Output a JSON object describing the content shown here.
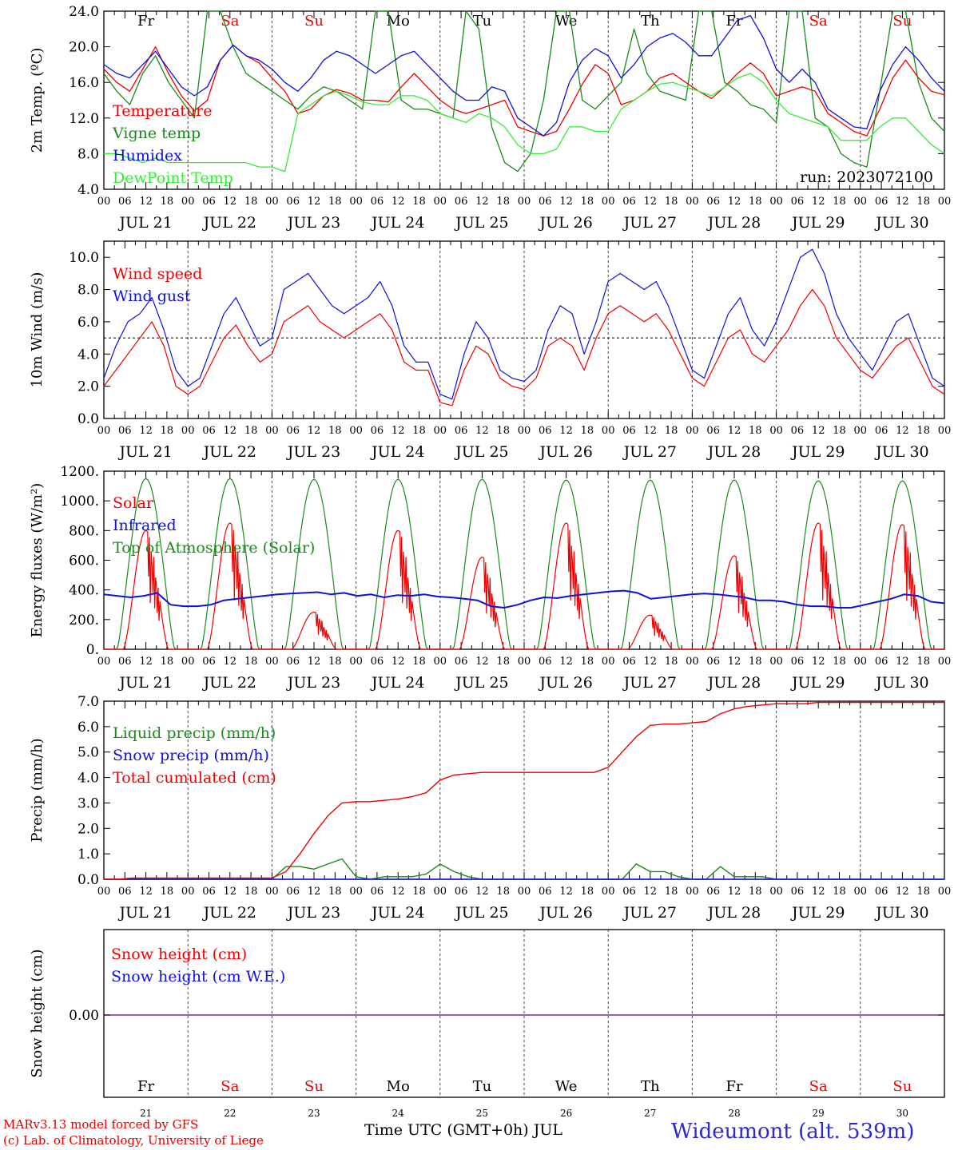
{
  "chart_data": [
    {
      "type": "line",
      "ylabel": "2m Temp. (ºC)",
      "ylim": [
        4,
        24
      ],
      "yticks": [
        "4.0",
        "8.0",
        "12.0",
        "16.0",
        "20.0",
        "24.0"
      ],
      "annotation": "run: 2023072100",
      "legend_placement": "bottom-left",
      "series": [
        {
          "name": "Temperature",
          "color": "#ee0000",
          "values": [
            17.5,
            16.0,
            15.0,
            17.5,
            20.0,
            17.0,
            14.5,
            12.8,
            14.0,
            18.5,
            20.2,
            19.0,
            18.2,
            16.5,
            15.0,
            12.5,
            13.0,
            14.5,
            15.2,
            14.8,
            14.0,
            14.0,
            13.8,
            15.5,
            17.0,
            15.5,
            14.0,
            13.0,
            12.5,
            13.0,
            13.5,
            14.0,
            11.0,
            10.5,
            10.0,
            10.5,
            13.0,
            15.8,
            18.0,
            17.0,
            13.5,
            14.0,
            15.0,
            16.5,
            17.0,
            16.0,
            15.0,
            14.2,
            15.5,
            17.0,
            18.2,
            17.0,
            14.5,
            15.0,
            15.5,
            15.0,
            12.5,
            11.5,
            10.5,
            10.0,
            13.0,
            16.5,
            18.5,
            16.5,
            15.0,
            14.6
          ]
        },
        {
          "name": "Vigne temp",
          "color": "#1a8a1a",
          "values": [
            17.0,
            15.0,
            13.5,
            17.0,
            19.0,
            16.0,
            14.0,
            12.0,
            24.0,
            24.0,
            20.0,
            17.0,
            16.0,
            15.0,
            14.0,
            13.0,
            14.5,
            15.5,
            15.0,
            14.0,
            13.0,
            24.0,
            24.0,
            14.0,
            13.0,
            13.0,
            12.5,
            12.0,
            24.0,
            22.0,
            11.0,
            7.0,
            6.0,
            8.0,
            14.0,
            24.0,
            24.0,
            14.0,
            13.0,
            14.5,
            16.0,
            22.0,
            17.0,
            15.0,
            14.5,
            14.0,
            24.0,
            24.0,
            16.0,
            15.0,
            13.5,
            13.0,
            11.5,
            24.0,
            24.0,
            12.0,
            11.0,
            8.0,
            7.0,
            6.5,
            15.0,
            24.0,
            24.0,
            16.0,
            12.0,
            10.5
          ]
        },
        {
          "name": "Humidex",
          "color": "#1010dd",
          "values": [
            18.0,
            17.0,
            16.5,
            18.0,
            19.5,
            17.5,
            15.5,
            14.5,
            15.5,
            18.5,
            20.2,
            19.0,
            18.5,
            17.5,
            16.0,
            15.0,
            16.5,
            18.5,
            19.5,
            19.0,
            18.0,
            17.0,
            18.0,
            19.0,
            19.5,
            18.0,
            16.5,
            15.0,
            14.0,
            14.0,
            15.5,
            15.0,
            12.0,
            11.0,
            10.0,
            11.5,
            16.0,
            18.5,
            19.8,
            19.0,
            16.5,
            18.0,
            20.0,
            21.0,
            21.5,
            20.5,
            19.0,
            19.0,
            21.0,
            23.0,
            23.5,
            21.0,
            17.5,
            16.0,
            17.5,
            16.0,
            13.0,
            12.0,
            11.0,
            10.8,
            15.0,
            18.0,
            20.0,
            18.5,
            16.5,
            15.0
          ]
        },
        {
          "name": "DewPoint Temp",
          "color": "#33ee33",
          "values": [
            8.0,
            8.0,
            7.5,
            7.0,
            7.5,
            7.0,
            7.0,
            7.0,
            7.0,
            7.0,
            7.0,
            7.0,
            6.5,
            6.5,
            6.0,
            12.5,
            13.5,
            14.5,
            15.0,
            14.5,
            13.8,
            13.5,
            13.5,
            14.5,
            14.5,
            14.0,
            12.5,
            12.0,
            11.5,
            12.5,
            12.0,
            11.0,
            9.0,
            8.0,
            8.0,
            8.5,
            11.0,
            11.0,
            10.5,
            10.5,
            13.0,
            14.0,
            15.0,
            15.8,
            16.0,
            15.5,
            15.0,
            14.5,
            15.5,
            16.5,
            17.0,
            16.0,
            14.0,
            12.5,
            12.0,
            11.5,
            11.0,
            9.5,
            9.5,
            9.5,
            11.0,
            12.0,
            12.0,
            10.5,
            9.0,
            8.0
          ]
        }
      ]
    },
    {
      "type": "line",
      "ylabel": "10m Wind (m/s)",
      "ylim": [
        0,
        11
      ],
      "yticks": [
        "0.0",
        "2.0",
        "4.0",
        "6.0",
        "8.0",
        "10.0"
      ],
      "reference_line": 5,
      "series": [
        {
          "name": "Wind speed",
          "color": "#ee0000",
          "values": [
            2.0,
            3.0,
            4.0,
            5.0,
            6.0,
            4.5,
            2.0,
            1.5,
            2.0,
            3.5,
            5.0,
            5.8,
            4.5,
            3.5,
            4.0,
            6.0,
            6.5,
            7.0,
            6.0,
            5.5,
            5.0,
            5.5,
            6.0,
            6.5,
            5.5,
            3.5,
            3.0,
            3.0,
            1.0,
            0.8,
            3.0,
            4.5,
            4.0,
            2.5,
            2.0,
            1.8,
            2.5,
            4.5,
            5.0,
            4.5,
            3.0,
            5.0,
            6.5,
            7.0,
            6.5,
            6.0,
            6.5,
            5.5,
            4.0,
            2.5,
            2.0,
            3.5,
            5.0,
            5.5,
            4.0,
            3.5,
            4.5,
            5.5,
            7.0,
            8.0,
            7.0,
            5.0,
            4.0,
            3.0,
            2.5,
            3.5,
            4.5,
            5.0,
            3.5,
            2.0,
            1.5
          ]
        },
        {
          "name": "Wind gust",
          "color": "#1010dd",
          "values": [
            2.5,
            4.5,
            6.0,
            6.5,
            7.5,
            5.5,
            3.0,
            2.0,
            2.5,
            4.5,
            6.5,
            7.5,
            6.0,
            4.5,
            5.0,
            8.0,
            8.5,
            9.0,
            8.0,
            7.0,
            6.5,
            7.0,
            7.5,
            8.5,
            7.0,
            4.5,
            3.5,
            3.5,
            1.5,
            1.2,
            4.0,
            6.0,
            5.0,
            3.0,
            2.5,
            2.3,
            3.0,
            5.5,
            7.0,
            6.5,
            4.0,
            6.0,
            8.5,
            9.0,
            8.5,
            8.0,
            8.5,
            7.0,
            5.0,
            3.0,
            2.5,
            4.5,
            6.5,
            7.5,
            5.5,
            4.5,
            6.0,
            8.0,
            10.0,
            10.5,
            9.0,
            6.5,
            5.0,
            4.0,
            3.0,
            4.5,
            6.0,
            6.5,
            4.5,
            2.5,
            2.0
          ]
        }
      ]
    },
    {
      "type": "line",
      "ylabel": "Energy fluxes (W/m²)",
      "ylim": [
        0,
        1200
      ],
      "yticks": [
        "0.",
        "200.",
        "400.",
        "600.",
        "800.",
        "1000.",
        "1200."
      ],
      "series": [
        {
          "name": "Solar",
          "color": "#ee0000",
          "day_peaks": [
            800,
            850,
            250,
            800,
            620,
            850,
            230,
            630,
            850,
            840
          ]
        },
        {
          "name": "Infrared",
          "color": "#1010dd",
          "values": [
            370,
            360,
            350,
            360,
            380,
            300,
            290,
            290,
            300,
            330,
            340,
            350,
            360,
            370,
            375,
            380,
            385,
            370,
            380,
            360,
            370,
            350,
            365,
            360,
            370,
            355,
            350,
            340,
            330,
            290,
            280,
            300,
            330,
            350,
            345,
            360,
            370,
            380,
            390,
            395,
            380,
            340,
            350,
            360,
            370,
            375,
            370,
            360,
            350,
            330,
            330,
            320,
            300,
            290,
            290,
            280,
            280,
            300,
            320,
            340,
            370,
            360,
            320,
            310
          ]
        },
        {
          "name": "Top of Atmosphere (Solar)",
          "color": "#1a8a1a",
          "day_peaks": [
            1150,
            1150,
            1145,
            1145,
            1145,
            1140,
            1140,
            1140,
            1135,
            1135
          ]
        }
      ]
    },
    {
      "type": "line",
      "ylabel": "Precip (mm/h)",
      "ylim": [
        0,
        7
      ],
      "yticks": [
        "0.0",
        "1.0",
        "2.0",
        "3.0",
        "4.0",
        "5.0",
        "6.0",
        "7.0"
      ],
      "series": [
        {
          "name": "Liquid precip (mm/h)",
          "color": "#1a8a1a",
          "values": [
            0,
            0,
            0,
            0,
            0,
            0,
            0,
            0,
            0,
            0,
            0,
            0,
            0,
            0.5,
            0.5,
            0.4,
            0.6,
            0.8,
            0.1,
            0,
            0.1,
            0.1,
            0.1,
            0.2,
            0.6,
            0.3,
            0.1,
            0,
            0,
            0,
            0,
            0,
            0,
            0,
            0,
            0,
            0,
            0,
            0.6,
            0.3,
            0.3,
            0.1,
            0,
            0,
            0.5,
            0.1,
            0.1,
            0.1,
            0,
            0,
            0,
            0,
            0,
            0,
            0,
            0,
            0,
            0,
            0,
            0,
            0
          ]
        },
        {
          "name": "Snow precip (mm/h)",
          "color": "#1010dd",
          "values": [
            0,
            0,
            0,
            0,
            0,
            0,
            0,
            0,
            0,
            0,
            0,
            0,
            0,
            0,
            0,
            0,
            0,
            0,
            0,
            0,
            0,
            0,
            0,
            0,
            0,
            0,
            0,
            0,
            0,
            0,
            0,
            0,
            0,
            0,
            0,
            0,
            0,
            0,
            0,
            0,
            0,
            0,
            0,
            0,
            0,
            0,
            0,
            0,
            0,
            0,
            0,
            0,
            0,
            0,
            0,
            0,
            0,
            0,
            0,
            0,
            0
          ]
        },
        {
          "name": "Total cumulated (cm)",
          "color": "#ee0000",
          "values": [
            0.0,
            0.0,
            0.05,
            0.05,
            0.05,
            0.05,
            0.05,
            0.05,
            0.05,
            0.05,
            0.05,
            0.05,
            0.05,
            0.3,
            1.0,
            1.8,
            2.5,
            3.0,
            3.05,
            3.05,
            3.1,
            3.15,
            3.25,
            3.4,
            3.9,
            4.1,
            4.15,
            4.2,
            4.2,
            4.2,
            4.2,
            4.2,
            4.2,
            4.2,
            4.2,
            4.2,
            4.4,
            5.0,
            5.6,
            6.05,
            6.1,
            6.1,
            6.15,
            6.2,
            6.5,
            6.7,
            6.8,
            6.85,
            6.9,
            6.9,
            6.9,
            6.95,
            6.95,
            6.95,
            6.95,
            6.95,
            6.95,
            6.95,
            6.95,
            6.95,
            6.95
          ]
        }
      ]
    },
    {
      "type": "line",
      "ylabel": "Snow height (cm)",
      "ytick": "0.00",
      "series": [
        {
          "name": "Snow height (cm)",
          "color": "#ee0000",
          "values": [
            0,
            0
          ]
        },
        {
          "name": "Snow height (cm W.E.)",
          "color": "#1010dd",
          "values": [
            0,
            0
          ]
        }
      ]
    }
  ],
  "axis": {
    "hour_labels": [
      "00",
      "06",
      "12",
      "18"
    ],
    "final_hour_label": "00",
    "date_labels": [
      "JUL 21",
      "JUL 22",
      "JUL 23",
      "JUL 24",
      "JUL 25",
      "JUL 26",
      "JUL 27",
      "JUL 28",
      "JUL 29",
      "JUL 30"
    ],
    "weekdays": [
      "Fr",
      "Sa",
      "Su",
      "Mo",
      "Tu",
      "We",
      "Th",
      "Fr",
      "Sa",
      "Su"
    ],
    "weekend_flags": [
      false,
      true,
      true,
      false,
      false,
      false,
      false,
      false,
      true,
      true
    ],
    "day_numbers": [
      "21",
      "22",
      "23",
      "24",
      "25",
      "26",
      "27",
      "28",
      "29",
      "30"
    ],
    "xlabel": "Time UTC (GMT+0h) JUL"
  },
  "footer": {
    "credit_line1": "MARv3.13 model forced by GFS",
    "credit_line2": "(c) Lab. of Climatology, University of Liege",
    "station": "Wideumont (alt. 539m)"
  },
  "colors": {
    "weekday": "#000000",
    "weekend": "#ee0000",
    "snow_line": "#7a2aa0"
  }
}
